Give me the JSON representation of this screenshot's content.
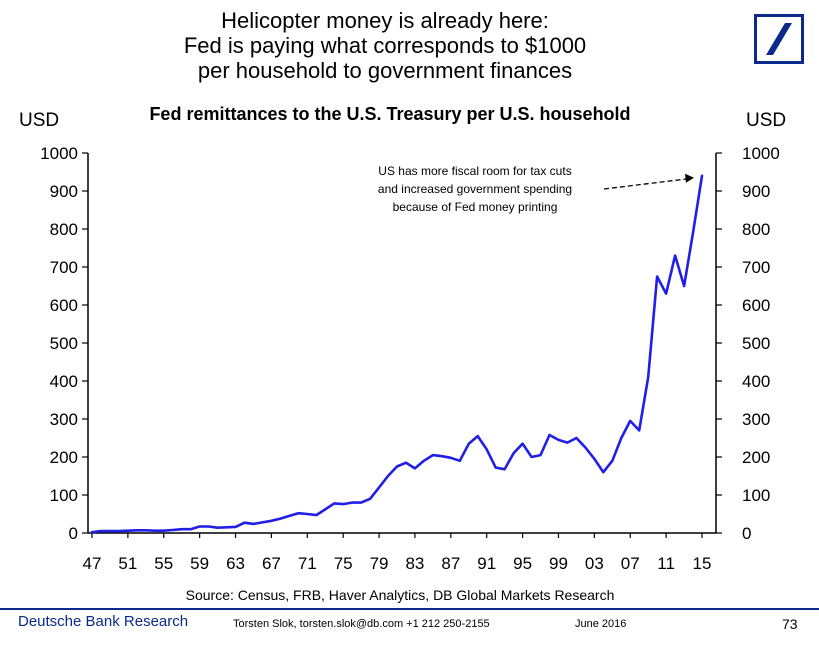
{
  "header": {
    "headline_lines": [
      "Helicopter money is already here:",
      "Fed is paying what corresponds to $1000",
      "per household to government finances"
    ],
    "logo_icon": "deutsche-bank-slash-logo",
    "brand_color": "#0b2a8c"
  },
  "chart_data": {
    "type": "line",
    "title": "Fed remittances to the U.S. Treasury per U.S. household",
    "ylabel_left": "USD",
    "ylabel_right": "USD",
    "ylim": [
      0,
      1000
    ],
    "y_ticks": [
      "0",
      "100",
      "200",
      "300",
      "400",
      "500",
      "600",
      "700",
      "800",
      "900",
      "1000"
    ],
    "xlim": [
      1947,
      2015
    ],
    "x_ticks": [
      "47",
      "51",
      "55",
      "59",
      "63",
      "67",
      "71",
      "75",
      "79",
      "83",
      "87",
      "91",
      "95",
      "99",
      "03",
      "07",
      "11",
      "15"
    ],
    "series": [
      {
        "color": "#1f1fe8",
        "x": [
          1947,
          1948,
          1949,
          1950,
          1951,
          1952,
          1953,
          1954,
          1955,
          1956,
          1957,
          1958,
          1959,
          1960,
          1961,
          1962,
          1963,
          1964,
          1965,
          1966,
          1967,
          1968,
          1969,
          1970,
          1971,
          1972,
          1973,
          1974,
          1975,
          1976,
          1977,
          1978,
          1979,
          1980,
          1981,
          1982,
          1983,
          1984,
          1985,
          1986,
          1987,
          1988,
          1989,
          1990,
          1991,
          1992,
          1993,
          1994,
          1995,
          1996,
          1997,
          1998,
          1999,
          2000,
          2001,
          2002,
          2003,
          2004,
          2005,
          2006,
          2007,
          2008,
          2009,
          2010,
          2011,
          2012,
          2013,
          2014,
          2015
        ],
        "values": [
          2,
          5,
          5,
          5,
          6,
          7,
          7,
          6,
          6,
          8,
          10,
          10,
          17,
          17,
          14,
          15,
          16,
          27,
          24,
          28,
          32,
          38,
          45,
          52,
          50,
          47,
          62,
          78,
          76,
          80,
          80,
          90,
          120,
          150,
          175,
          185,
          170,
          190,
          205,
          202,
          198,
          190,
          235,
          255,
          220,
          172,
          168,
          210,
          235,
          200,
          205,
          258,
          245,
          238,
          250,
          225,
          195,
          160,
          190,
          250,
          295,
          270,
          410,
          675,
          630,
          730,
          650,
          790,
          940
        ]
      }
    ],
    "annotation": {
      "lines": [
        "US has more fiscal room for tax cuts",
        "and increased government spending",
        "because of Fed money printing"
      ],
      "points_to_year": 2015,
      "points_to_value": 940
    }
  },
  "source_text": "Source: Census, FRB, Haver Analytics, DB Global Markets Research",
  "footer": {
    "brand": "Deutsche Bank Research",
    "author": "Torsten Slok, torsten.slok@db.com  +1 212 250-2155",
    "date": "June 2016",
    "page_number": "73"
  }
}
